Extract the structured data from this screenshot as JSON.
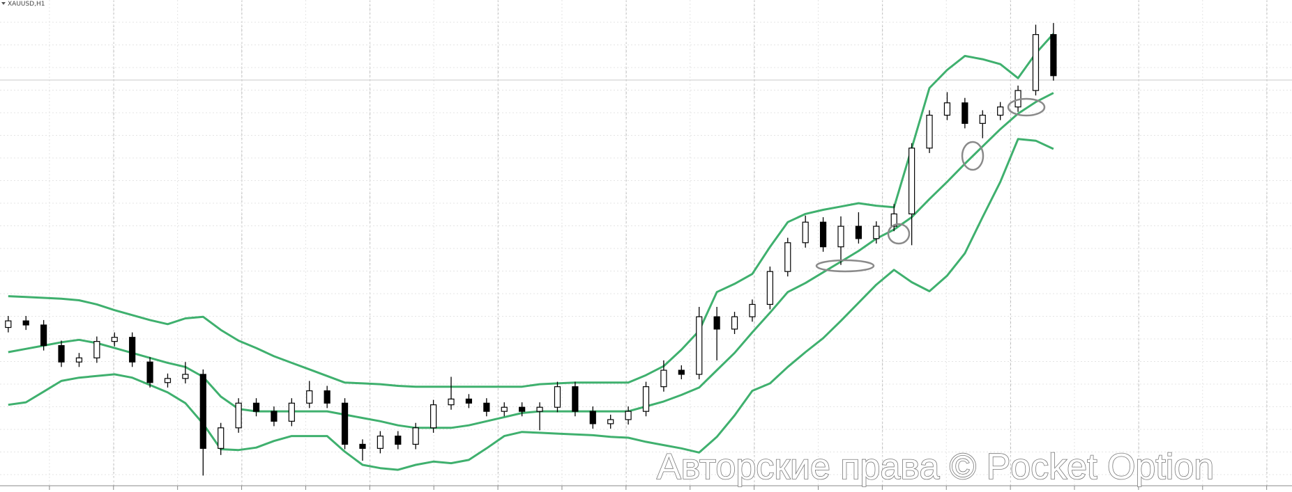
{
  "chart_data": {
    "type": "candlestick",
    "title": "XAUUSD,H1",
    "watermark": "Авторские права © Pocket Option",
    "candle_color": "#000000",
    "band_color": "#3fb06e",
    "ylim": [
      0,
      598
    ],
    "grid": true,
    "open": [
      200,
      208,
      203,
      178,
      158,
      163,
      183,
      188,
      158,
      133,
      138,
      143,
      53,
      78,
      108,
      98,
      86,
      108,
      123,
      108,
      58,
      53,
      68,
      58,
      78,
      106,
      113,
      108,
      98,
      103,
      98,
      103,
      128,
      98,
      83,
      88,
      98,
      128,
      148,
      143,
      213,
      198,
      213,
      228,
      268,
      303,
      328,
      298,
      323,
      308,
      323,
      338,
      418,
      458,
      473,
      448,
      458,
      468,
      488,
      556
    ],
    "high": [
      214,
      214,
      209,
      184,
      169,
      189,
      194,
      194,
      164,
      144,
      158,
      149,
      84,
      114,
      114,
      104,
      114,
      135,
      129,
      114,
      64,
      74,
      74,
      84,
      112,
      140,
      119,
      114,
      109,
      109,
      109,
      134,
      134,
      104,
      94,
      104,
      134,
      160,
      154,
      225,
      225,
      219,
      234,
      274,
      309,
      336,
      334,
      335,
      340,
      329,
      350,
      424,
      464,
      486,
      479,
      464,
      474,
      494,
      568,
      570
    ],
    "low": [
      194,
      197,
      172,
      152,
      152,
      157,
      177,
      152,
      127,
      127,
      132,
      20,
      45,
      72,
      92,
      80,
      80,
      102,
      102,
      52,
      38,
      47,
      52,
      52,
      72,
      100,
      102,
      92,
      92,
      92,
      75,
      97,
      92,
      77,
      77,
      82,
      92,
      122,
      137,
      137,
      160,
      192,
      207,
      222,
      262,
      297,
      292,
      276,
      302,
      302,
      317,
      300,
      412,
      452,
      442,
      430,
      452,
      462,
      482,
      500
    ],
    "close": [
      208,
      203,
      178,
      158,
      163,
      183,
      188,
      158,
      133,
      138,
      143,
      53,
      78,
      108,
      98,
      86,
      108,
      123,
      108,
      58,
      53,
      68,
      58,
      78,
      106,
      113,
      108,
      98,
      103,
      98,
      103,
      128,
      98,
      83,
      88,
      98,
      128,
      148,
      143,
      213,
      198,
      213,
      228,
      268,
      303,
      328,
      298,
      323,
      308,
      323,
      338,
      418,
      458,
      473,
      448,
      458,
      468,
      488,
      556,
      506
    ],
    "bands": {
      "upper": [
        238,
        237,
        236,
        235,
        233,
        228,
        221,
        215,
        209,
        204,
        211,
        213,
        197,
        184,
        175,
        165,
        157,
        149,
        141,
        133,
        132,
        131,
        129,
        128,
        128,
        128,
        128,
        128,
        128,
        128,
        131,
        132,
        133,
        133,
        133,
        133,
        142,
        153,
        173,
        196,
        243,
        253,
        265,
        298,
        328,
        338,
        343,
        347,
        351,
        348,
        346,
        418,
        491,
        513,
        530,
        526,
        520,
        503,
        533,
        557
      ],
      "middle": [
        170,
        174,
        178,
        182,
        185,
        181,
        175,
        169,
        163,
        157,
        152,
        140,
        116,
        101,
        98,
        98,
        98,
        98,
        98,
        94,
        90,
        86,
        81,
        78,
        78,
        78,
        81,
        86,
        91,
        96,
        98,
        98,
        98,
        98,
        98,
        98,
        104,
        110,
        118,
        127,
        148,
        169,
        194,
        218,
        243,
        254,
        267,
        280,
        293,
        308,
        319,
        334,
        356,
        377,
        399,
        420,
        441,
        460,
        474,
        485
      ],
      "lower": [
        106,
        109,
        122,
        135,
        139,
        141,
        143,
        139,
        130,
        121,
        108,
        83,
        52,
        51,
        54,
        62,
        68,
        68,
        68,
        49,
        33,
        29,
        27,
        33,
        37,
        35,
        39,
        53,
        68,
        73,
        72,
        71,
        70,
        69,
        67,
        66,
        61,
        57,
        53,
        48,
        67,
        93,
        123,
        132,
        152,
        170,
        187,
        208,
        230,
        252,
        270,
        255,
        244,
        263,
        290,
        334,
        377,
        429,
        427,
        417
      ]
    }
  }
}
